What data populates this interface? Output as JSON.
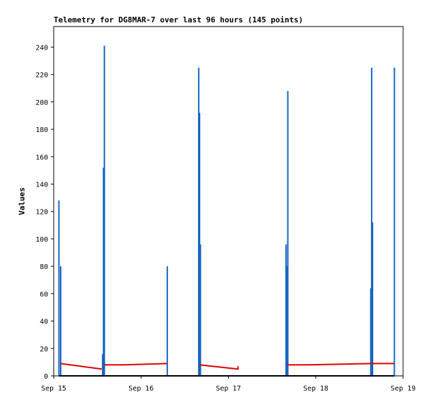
{
  "chart_data": {
    "type": "bar",
    "title": "Telemetry for DG8MAR-7 over last 96 hours (145 points)",
    "xlabel": "",
    "ylabel": "Values",
    "xlim": [
      "Sep 15",
      "Sep 19"
    ],
    "ylim": [
      0,
      255
    ],
    "y_ticks": [
      0,
      20,
      40,
      60,
      80,
      100,
      120,
      140,
      160,
      180,
      200,
      220,
      240
    ],
    "x_ticks": [
      "Sep 15",
      "Sep 16",
      "Sep 17",
      "Sep 18",
      "Sep 19"
    ],
    "grid": false,
    "series": [
      {
        "color": "#1565c0",
        "type": "bar",
        "points": [
          {
            "x": 15.06,
            "y": 128
          },
          {
            "x": 15.08,
            "y": 80
          },
          {
            "x": 15.56,
            "y": 16
          },
          {
            "x": 15.57,
            "y": 152
          },
          {
            "x": 15.58,
            "y": 241
          },
          {
            "x": 16.3,
            "y": 80
          },
          {
            "x": 16.66,
            "y": 225
          },
          {
            "x": 16.67,
            "y": 192
          },
          {
            "x": 16.68,
            "y": 96
          },
          {
            "x": 17.66,
            "y": 96
          },
          {
            "x": 17.67,
            "y": 80
          },
          {
            "x": 17.68,
            "y": 208
          },
          {
            "x": 18.63,
            "y": 64
          },
          {
            "x": 18.64,
            "y": 225
          },
          {
            "x": 18.65,
            "y": 112
          },
          {
            "x": 18.9,
            "y": 225
          }
        ]
      },
      {
        "color": "#e00000",
        "type": "line",
        "segments": [
          [
            {
              "x": 15.08,
              "y": 9
            },
            {
              "x": 15.55,
              "y": 5
            }
          ],
          [
            {
              "x": 15.58,
              "y": 8
            },
            {
              "x": 15.8,
              "y": 8
            },
            {
              "x": 16.3,
              "y": 9
            }
          ],
          [
            {
              "x": 16.67,
              "y": 8
            },
            {
              "x": 17.11,
              "y": 5
            },
            {
              "x": 17.11,
              "y": 7
            }
          ],
          [
            {
              "x": 17.67,
              "y": 8
            },
            {
              "x": 17.9,
              "y": 8
            },
            {
              "x": 18.63,
              "y": 9
            },
            {
              "x": 18.9,
              "y": 9
            }
          ]
        ]
      },
      {
        "color": "#000000",
        "type": "line",
        "segments": [
          [
            {
              "x": 15.06,
              "y": 0
            },
            {
              "x": 18.9,
              "y": 0
            }
          ]
        ]
      }
    ]
  }
}
